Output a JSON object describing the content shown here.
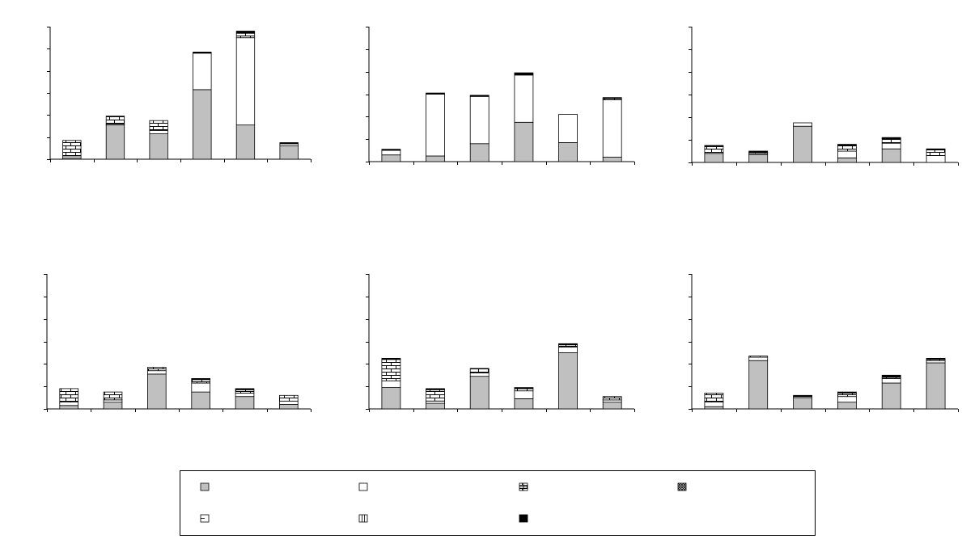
{
  "colors": {
    "axis": "#000000",
    "gray": "#c0c0c0",
    "white": "#ffffff",
    "dark": "#000000"
  },
  "legend": {
    "entries": [
      {
        "pattern": "gray",
        "label": ""
      },
      {
        "pattern": "white",
        "label": ""
      },
      {
        "pattern": "brick",
        "label": ""
      },
      {
        "pattern": "crosshatch",
        "label": ""
      },
      {
        "pattern": "hlinebox",
        "label": ""
      },
      {
        "pattern": "vlinebox",
        "label": ""
      },
      {
        "pattern": "black",
        "label": ""
      }
    ]
  },
  "chart_data": [
    {
      "type": "bar",
      "stacked": true,
      "ylim": [
        0,
        6
      ],
      "yticks": 6,
      "categories": [
        "",
        "",
        "",
        "",
        "",
        ""
      ],
      "series": [
        {
          "pattern": "gray",
          "values": [
            0.05,
            1.55,
            1.15,
            3.15,
            1.55,
            0.6
          ]
        },
        {
          "pattern": "white",
          "values": [
            0.1,
            0.05,
            0.15,
            1.65,
            3.95,
            0.1
          ]
        },
        {
          "pattern": "brick",
          "values": [
            0.7,
            0.35,
            0.45,
            0.0,
            0.2,
            0.0
          ]
        },
        {
          "pattern": "black",
          "values": [
            0.0,
            0.0,
            0.0,
            0.05,
            0.1,
            0.05
          ]
        }
      ]
    },
    {
      "type": "bar",
      "stacked": true,
      "ylim": [
        0,
        6
      ],
      "yticks": 6,
      "categories": [
        "",
        "",
        "",
        "",
        "",
        ""
      ],
      "series": [
        {
          "pattern": "gray",
          "values": [
            0.3,
            0.25,
            0.8,
            1.75,
            0.85,
            0.2
          ]
        },
        {
          "pattern": "white",
          "values": [
            0.2,
            2.75,
            2.1,
            2.1,
            1.25,
            2.55
          ]
        },
        {
          "pattern": "brick",
          "values": [
            0.0,
            0.0,
            0.0,
            0.0,
            0.0,
            0.05
          ]
        },
        {
          "pattern": "black",
          "values": [
            0.05,
            0.05,
            0.05,
            0.1,
            0.0,
            0.05
          ]
        }
      ]
    },
    {
      "type": "bar",
      "stacked": true,
      "ylim": [
        0,
        6
      ],
      "yticks": 6,
      "categories": [
        "",
        "",
        "",
        "",
        "",
        ""
      ],
      "series": [
        {
          "pattern": "gray",
          "values": [
            0.4,
            0.35,
            1.6,
            0.2,
            0.6,
            0.0
          ]
        },
        {
          "pattern": "white",
          "values": [
            0.05,
            0.05,
            0.15,
            0.3,
            0.25,
            0.3
          ]
        },
        {
          "pattern": "brick",
          "values": [
            0.25,
            0.05,
            0.0,
            0.25,
            0.2,
            0.25
          ]
        },
        {
          "pattern": "black",
          "values": [
            0.05,
            0.05,
            0.0,
            0.05,
            0.05,
            0.05
          ]
        }
      ]
    },
    {
      "type": "bar",
      "stacked": true,
      "ylim": [
        0,
        6
      ],
      "yticks": 6,
      "categories": [
        "",
        "",
        "",
        "",
        "",
        ""
      ],
      "series": [
        {
          "pattern": "gray",
          "values": [
            0.15,
            0.3,
            1.55,
            0.75,
            0.55,
            0.2
          ]
        },
        {
          "pattern": "white",
          "values": [
            0.15,
            0.1,
            0.15,
            0.4,
            0.15,
            0.15
          ]
        },
        {
          "pattern": "brick",
          "values": [
            0.6,
            0.35,
            0.15,
            0.15,
            0.15,
            0.25
          ]
        },
        {
          "pattern": "black",
          "values": [
            0.0,
            0.0,
            0.0,
            0.05,
            0.05,
            0.0
          ]
        }
      ]
    },
    {
      "type": "bar",
      "stacked": true,
      "ylim": [
        0,
        6
      ],
      "yticks": 6,
      "categories": [
        "",
        "",
        "",
        "",
        "",
        ""
      ],
      "series": [
        {
          "pattern": "gray",
          "values": [
            0.95,
            0.25,
            1.45,
            0.45,
            2.5,
            0.3
          ]
        },
        {
          "pattern": "white",
          "values": [
            0.3,
            0.1,
            0.15,
            0.35,
            0.25,
            0.1
          ]
        },
        {
          "pattern": "brick",
          "values": [
            0.95,
            0.5,
            0.2,
            0.1,
            0.1,
            0.15
          ]
        },
        {
          "pattern": "black",
          "values": [
            0.05,
            0.05,
            0.0,
            0.05,
            0.05,
            0.0
          ]
        }
      ]
    },
    {
      "type": "bar",
      "stacked": true,
      "ylim": [
        0,
        6
      ],
      "yticks": 6,
      "categories": [
        "",
        "",
        "",
        "",
        "",
        ""
      ],
      "series": [
        {
          "pattern": "gray",
          "values": [
            0.1,
            2.15,
            0.5,
            0.3,
            1.15,
            2.05
          ]
        },
        {
          "pattern": "white",
          "values": [
            0.2,
            0.15,
            0.05,
            0.25,
            0.2,
            0.1
          ]
        },
        {
          "pattern": "brick",
          "values": [
            0.4,
            0.05,
            0.0,
            0.15,
            0.05,
            0.05
          ]
        },
        {
          "pattern": "black",
          "values": [
            0.0,
            0.0,
            0.05,
            0.05,
            0.1,
            0.05
          ]
        }
      ]
    }
  ]
}
